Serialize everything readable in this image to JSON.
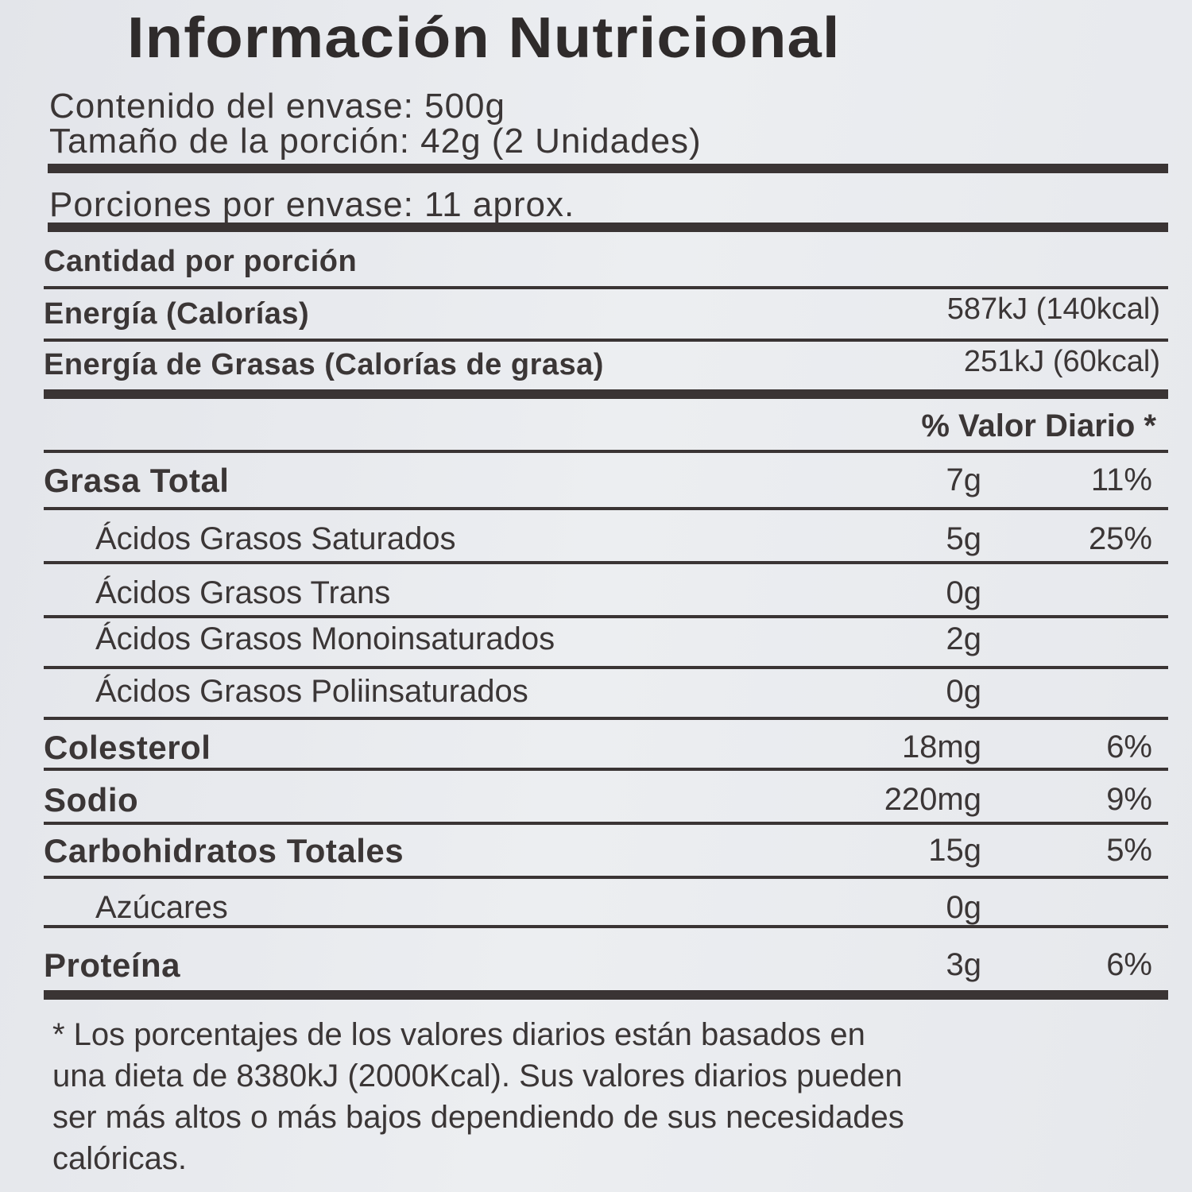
{
  "title": "Información Nutricional",
  "contenido": "Contenido del envase: 500g",
  "porcion": "Tamaño de la porción: 42g (2 Unidades)",
  "porciones": "Porciones por envase: 11 aprox.",
  "cantidad": "Cantidad por porción",
  "energia": {
    "label": "Energía (Calorías)",
    "value": "587kJ (140kcal)"
  },
  "energia_grasas": {
    "label": "Energía de Grasas (Calorías de grasa)",
    "value": "251kJ (60kcal)"
  },
  "valor_diario_header": "% Valor Diario *",
  "rows": [
    {
      "label": "Grasa Total",
      "amount": "7g",
      "pct": "11%"
    },
    {
      "label": "Ácidos Grasos Saturados",
      "amount": "5g",
      "pct": "25%"
    },
    {
      "label": "Ácidos Grasos Trans",
      "amount": "0g",
      "pct": ""
    },
    {
      "label": "Ácidos Grasos Monoinsaturados",
      "amount": "2g",
      "pct": ""
    },
    {
      "label": "Ácidos Grasos Poliinsaturados",
      "amount": "0g",
      "pct": ""
    },
    {
      "label": "Colesterol",
      "amount": "18mg",
      "pct": "6%"
    },
    {
      "label": "Sodio",
      "amount": "220mg",
      "pct": "9%"
    },
    {
      "label": "Carbohidratos Totales",
      "amount": "15g",
      "pct": "5%"
    },
    {
      "label": "Azúcares",
      "amount": "0g",
      "pct": ""
    },
    {
      "label": "Proteína",
      "amount": "3g",
      "pct": "6%"
    }
  ],
  "footnote": [
    "* Los porcentajes de los valores diarios están basados en",
    "una dieta de 8380kJ (2000Kcal). Sus valores diarios pueden",
    "ser más altos o más bajos dependiendo de sus necesidades",
    "calóricas."
  ]
}
